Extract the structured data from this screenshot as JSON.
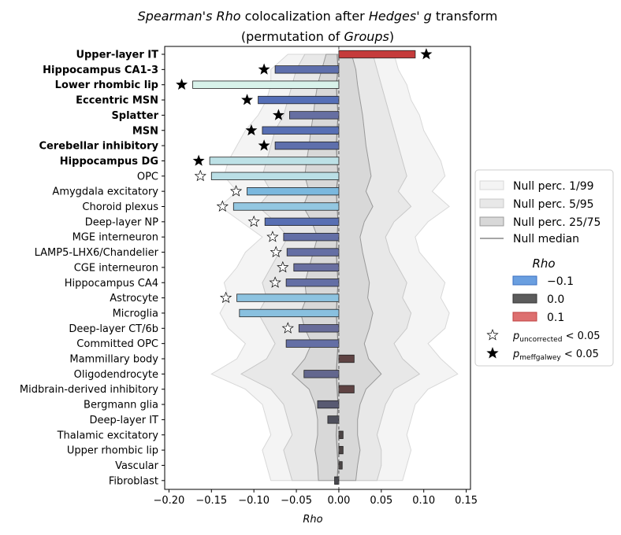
{
  "chart_data": {
    "type": "bar",
    "orientation": "horizontal",
    "title_line1_parts": [
      {
        "text": "Spearman's Rho",
        "italic": true
      },
      {
        "text": " colocalization after ",
        "italic": false
      },
      {
        "text": "Hedges' g",
        "italic": true
      },
      {
        "text": " transform",
        "italic": false
      }
    ],
    "title_line2_parts": [
      {
        "text": "(permutation of ",
        "italic": false
      },
      {
        "text": "Groups",
        "italic": true
      },
      {
        "text": ")",
        "italic": false
      }
    ],
    "xlabel": "Rho",
    "xlim": [
      -0.205,
      0.155
    ],
    "xticks": [
      -0.2,
      -0.15,
      -0.1,
      -0.05,
      0.0,
      0.05,
      0.1,
      0.15
    ],
    "xtick_labels": [
      "−0.20",
      "−0.15",
      "−0.10",
      "−0.05",
      "0.00",
      "0.05",
      "0.10",
      "0.15"
    ],
    "categories": [
      {
        "label": "Upper-layer IT",
        "bold": true,
        "value": 0.09,
        "star": "filled"
      },
      {
        "label": "Hippocampus CA1-3",
        "bold": true,
        "value": -0.075,
        "star": "filled"
      },
      {
        "label": "Lower rhombic lip",
        "bold": true,
        "value": -0.172,
        "star": "filled"
      },
      {
        "label": "Eccentric MSN",
        "bold": true,
        "value": -0.095,
        "star": "filled"
      },
      {
        "label": "Splatter",
        "bold": true,
        "value": -0.058,
        "star": "filled"
      },
      {
        "label": "MSN",
        "bold": true,
        "value": -0.09,
        "star": "filled"
      },
      {
        "label": "Cerebellar inhibitory",
        "bold": true,
        "value": -0.075,
        "star": "filled"
      },
      {
        "label": "Hippocampus DG",
        "bold": true,
        "value": -0.152,
        "star": "filled"
      },
      {
        "label": "OPC",
        "bold": false,
        "value": -0.15,
        "star": "open"
      },
      {
        "label": "Amygdala excitatory",
        "bold": false,
        "value": -0.108,
        "star": "open"
      },
      {
        "label": "Choroid plexus",
        "bold": false,
        "value": -0.124,
        "star": "open"
      },
      {
        "label": "Deep-layer NP",
        "bold": false,
        "value": -0.087,
        "star": "open"
      },
      {
        "label": "MGE interneuron",
        "bold": false,
        "value": -0.065,
        "star": "open"
      },
      {
        "label": "LAMP5-LHX6/Chandelier",
        "bold": false,
        "value": -0.061,
        "star": "open"
      },
      {
        "label": "CGE interneuron",
        "bold": false,
        "value": -0.053,
        "star": "open"
      },
      {
        "label": "Hippocampus CA4",
        "bold": false,
        "value": -0.062,
        "star": "open"
      },
      {
        "label": "Astrocyte",
        "bold": false,
        "value": -0.12,
        "star": "open"
      },
      {
        "label": "Microglia",
        "bold": false,
        "value": -0.117,
        "star": "none"
      },
      {
        "label": "Deep-layer CT/6b",
        "bold": false,
        "value": -0.047,
        "star": "open"
      },
      {
        "label": "Committed OPC",
        "bold": false,
        "value": -0.062,
        "star": "none"
      },
      {
        "label": "Mammillary body",
        "bold": false,
        "value": 0.018,
        "star": "none"
      },
      {
        "label": "Oligodendrocyte",
        "bold": false,
        "value": -0.041,
        "star": "none"
      },
      {
        "label": "Midbrain-derived inhibitory",
        "bold": false,
        "value": 0.018,
        "star": "none"
      },
      {
        "label": "Bergmann glia",
        "bold": false,
        "value": -0.025,
        "star": "none"
      },
      {
        "label": "Deep-layer IT",
        "bold": false,
        "value": -0.013,
        "star": "none"
      },
      {
        "label": "Thalamic excitatory",
        "bold": false,
        "value": 0.005,
        "star": "none"
      },
      {
        "label": "Upper rhombic lip",
        "bold": false,
        "value": 0.005,
        "star": "none"
      },
      {
        "label": "Vascular",
        "bold": false,
        "value": 0.004,
        "star": "none"
      },
      {
        "label": "Fibroblast",
        "bold": false,
        "value": -0.005,
        "star": "none"
      }
    ],
    "null_bands": {
      "p1": [
        -0.06,
        -0.08,
        -0.08,
        -0.085,
        -0.095,
        -0.11,
        -0.12,
        -0.13,
        -0.135,
        -0.12,
        -0.14,
        -0.115,
        -0.09,
        -0.11,
        -0.12,
        -0.135,
        -0.13,
        -0.14,
        -0.13,
        -0.11,
        -0.12,
        -0.15,
        -0.11,
        -0.09,
        -0.085,
        -0.08,
        -0.09,
        -0.085,
        -0.08
      ],
      "p99": [
        0.065,
        0.07,
        0.08,
        0.085,
        0.095,
        0.1,
        0.11,
        0.12,
        0.125,
        0.11,
        0.13,
        0.105,
        0.09,
        0.095,
        0.11,
        0.125,
        0.12,
        0.13,
        0.125,
        0.105,
        0.12,
        0.14,
        0.105,
        0.09,
        0.085,
        0.08,
        0.085,
        0.08,
        0.075
      ],
      "p5": [
        -0.04,
        -0.05,
        -0.055,
        -0.06,
        -0.065,
        -0.075,
        -0.08,
        -0.085,
        -0.09,
        -0.08,
        -0.095,
        -0.075,
        -0.06,
        -0.07,
        -0.08,
        -0.09,
        -0.085,
        -0.095,
        -0.085,
        -0.075,
        -0.085,
        -0.115,
        -0.08,
        -0.065,
        -0.06,
        -0.055,
        -0.065,
        -0.06,
        -0.055
      ],
      "p95": [
        0.04,
        0.045,
        0.05,
        0.055,
        0.06,
        0.065,
        0.07,
        0.075,
        0.08,
        0.07,
        0.085,
        0.065,
        0.055,
        0.06,
        0.07,
        0.08,
        0.075,
        0.085,
        0.08,
        0.065,
        0.075,
        0.095,
        0.065,
        0.055,
        0.05,
        0.045,
        0.05,
        0.05,
        0.045
      ],
      "p25": [
        -0.015,
        -0.02,
        -0.025,
        -0.028,
        -0.03,
        -0.033,
        -0.035,
        -0.038,
        -0.04,
        -0.035,
        -0.042,
        -0.032,
        -0.025,
        -0.03,
        -0.035,
        -0.04,
        -0.038,
        -0.045,
        -0.04,
        -0.032,
        -0.04,
        -0.055,
        -0.035,
        -0.028,
        -0.025,
        -0.025,
        -0.028,
        -0.025,
        -0.024
      ],
      "p75": [
        0.015,
        0.02,
        0.022,
        0.025,
        0.028,
        0.03,
        0.032,
        0.035,
        0.038,
        0.032,
        0.04,
        0.03,
        0.025,
        0.028,
        0.032,
        0.036,
        0.034,
        0.04,
        0.036,
        0.03,
        0.035,
        0.05,
        0.032,
        0.025,
        0.022,
        0.022,
        0.025,
        0.022,
        0.02
      ],
      "median": [
        -0.002,
        -0.001,
        -0.003,
        -0.002,
        -0.001,
        -0.002,
        -0.003,
        -0.002,
        -0.001,
        -0.003,
        -0.002,
        -0.001,
        -0.002,
        -0.003,
        -0.002,
        -0.001,
        -0.002,
        -0.003,
        -0.002,
        -0.001,
        -0.002,
        -0.003,
        -0.002,
        -0.001,
        -0.002,
        -0.003,
        -0.002,
        -0.001,
        -0.002
      ]
    },
    "colormap": {
      "min": -0.1,
      "max": 0.1,
      "low": "#3f6fd1",
      "mid": "#454545",
      "high": "#d33a3a"
    },
    "legend": {
      "placement": "center right",
      "band_entries": [
        {
          "label": "Null perc. 1/99",
          "fill": "#f4f4f4",
          "stroke": "#d8d8d8"
        },
        {
          "label": "Null perc. 5/95",
          "fill": "#e8e8e8",
          "stroke": "#c8c8c8"
        },
        {
          "label": "Null perc. 25/75",
          "fill": "#d8d8d8",
          "stroke": "#999999"
        }
      ],
      "median_entry": {
        "label": "Null median",
        "stroke": "#888888"
      },
      "rho_title": "Rho",
      "rho_entries": [
        {
          "label": "−0.1",
          "color": "#6a9fe0",
          "edge": "#3a6fc0"
        },
        {
          "label": "0.0",
          "color": "#5c5c5c",
          "edge": "#333333"
        },
        {
          "label": "0.1",
          "color": "#dd6f6f",
          "edge": "#c04040"
        }
      ],
      "star_entries": [
        {
          "kind": "open",
          "main": "p",
          "sub": "uncorrected",
          "rest": " < 0.05"
        },
        {
          "kind": "filled",
          "main": "p",
          "sub": "meffgalwey",
          "rest": " < 0.05"
        }
      ]
    }
  }
}
